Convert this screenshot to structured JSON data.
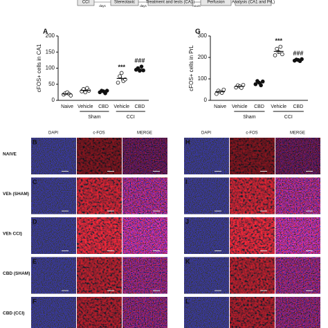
{
  "timeline": {
    "steps": [
      "CCI",
      "Stereotaxic",
      "Treatment and tests (CA1)",
      "Perfusion",
      "Analysis (CA1 and PrL)"
    ],
    "gaps": [
      "days",
      "days",
      "hours"
    ]
  },
  "chart_data": [
    {
      "type": "scatter",
      "panel": "A",
      "ylabel": "cFOS+ cells in CA1",
      "categories": [
        "Naive",
        "Vehicle",
        "CBD",
        "Vehicle",
        "CBD"
      ],
      "category_groups": [
        null,
        "Sham",
        "Sham",
        "CCI",
        "CCI"
      ],
      "points": [
        [
          18,
          22,
          25,
          20,
          15
        ],
        [
          28,
          35,
          25,
          38,
          30
        ],
        [
          25,
          30,
          28,
          22,
          30
        ],
        [
          55,
          75,
          85,
          60,
          65
        ],
        [
          95,
          100,
          92,
          105,
          93
        ]
      ],
      "means": [
        20,
        31,
        27,
        68,
        97
      ],
      "errors": [
        2,
        3,
        2,
        6,
        3
      ],
      "point_fill": [
        "#ffffff",
        "#ffffff",
        "#111111",
        "#ffffff",
        "#111111"
      ],
      "annotations": [
        null,
        null,
        null,
        "***",
        "###"
      ],
      "annotation_color": "#2b2b9b",
      "ylim": [
        0,
        200
      ],
      "yticks": [
        0,
        50,
        100,
        150,
        200
      ]
    },
    {
      "type": "scatter",
      "panel": "G",
      "ylabel": "cFOS+ cells in PrL",
      "categories": [
        "Naive",
        "Vehicle",
        "CBD",
        "Vehicle",
        "CBD"
      ],
      "category_groups": [
        null,
        "Sham",
        "Sham",
        "CCI",
        "CCI"
      ],
      "points": [
        [
          30,
          45,
          40,
          35,
          50
        ],
        [
          60,
          70,
          65,
          58,
          72
        ],
        [
          75,
          90,
          82,
          70,
          88
        ],
        [
          210,
          240,
          225,
          250,
          215
        ],
        [
          185,
          190,
          188,
          183,
          192
        ]
      ],
      "means": [
        40,
        65,
        81,
        228,
        188
      ],
      "errors": [
        4,
        3,
        4,
        8,
        2
      ],
      "point_fill": [
        "#ffffff",
        "#ffffff",
        "#111111",
        "#ffffff",
        "#111111"
      ],
      "annotations": [
        null,
        null,
        null,
        "***",
        "###"
      ],
      "annotation_color": "#2b2b9b",
      "ylim": [
        0,
        300
      ],
      "yticks": [
        0,
        100,
        200,
        300
      ]
    }
  ],
  "micrographs": {
    "columns": [
      "DAPI",
      "c-FOS",
      "MERGE"
    ],
    "rows": [
      "NAIVE",
      "VEh (SHAM)",
      "VEh CCI)",
      "CBD (SHAM)",
      "CBD (CCI)"
    ],
    "left_panels": [
      "B",
      "C",
      "D",
      "E",
      "F"
    ],
    "right_panels": [
      "H",
      "I",
      "J",
      "K",
      "L"
    ]
  }
}
